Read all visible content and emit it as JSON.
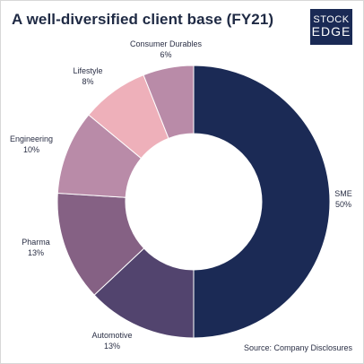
{
  "header": {
    "title": "A well-diversified client base (FY21)",
    "logo_line1": "STOCK",
    "logo_line2": "EDGE"
  },
  "footer": {
    "source": "Source: Company  Disclosures"
  },
  "chart_data": {
    "type": "pie",
    "donut": true,
    "title": "A well-diversified client base (FY21)",
    "categories": [
      "SME",
      "Automotive",
      "Pharma",
      "Engineering",
      "Lifestyle",
      "Consumer Durables"
    ],
    "values": [
      50,
      13,
      13,
      10,
      8,
      6
    ],
    "value_labels": [
      "50%",
      "13%",
      "13%",
      "10%",
      "8%",
      "6%"
    ],
    "colors": [
      "#1b2a55",
      "#52446e",
      "#856184",
      "#b98ba8",
      "#eeb0ba",
      "#b98ba8"
    ],
    "start": "12 o'clock",
    "direction": "clockwise"
  }
}
